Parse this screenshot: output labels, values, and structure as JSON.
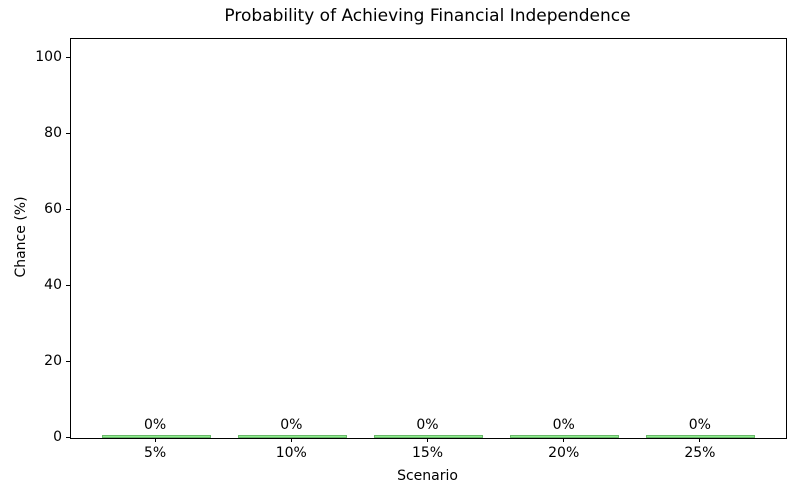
{
  "chart_data": {
    "type": "bar",
    "title": "Probability of Achieving Financial Independence",
    "xlabel": "Scenario",
    "ylabel": "Chance (%)",
    "categories": [
      "5%",
      "10%",
      "15%",
      "20%",
      "25%"
    ],
    "values": [
      0,
      0,
      0,
      0,
      0
    ],
    "bar_labels": [
      "0%",
      "0%",
      "0%",
      "0%",
      "0%"
    ],
    "yticks": [
      0,
      20,
      40,
      60,
      80,
      100
    ],
    "ylim": [
      0,
      105
    ],
    "bar_width_fraction": 0.8,
    "grid": false,
    "legend_position": "none",
    "bar_fill_color": "#90ee90",
    "bar_edge_color": "#69b869",
    "axis_color": "#000000",
    "background_color": "#ffffff"
  }
}
